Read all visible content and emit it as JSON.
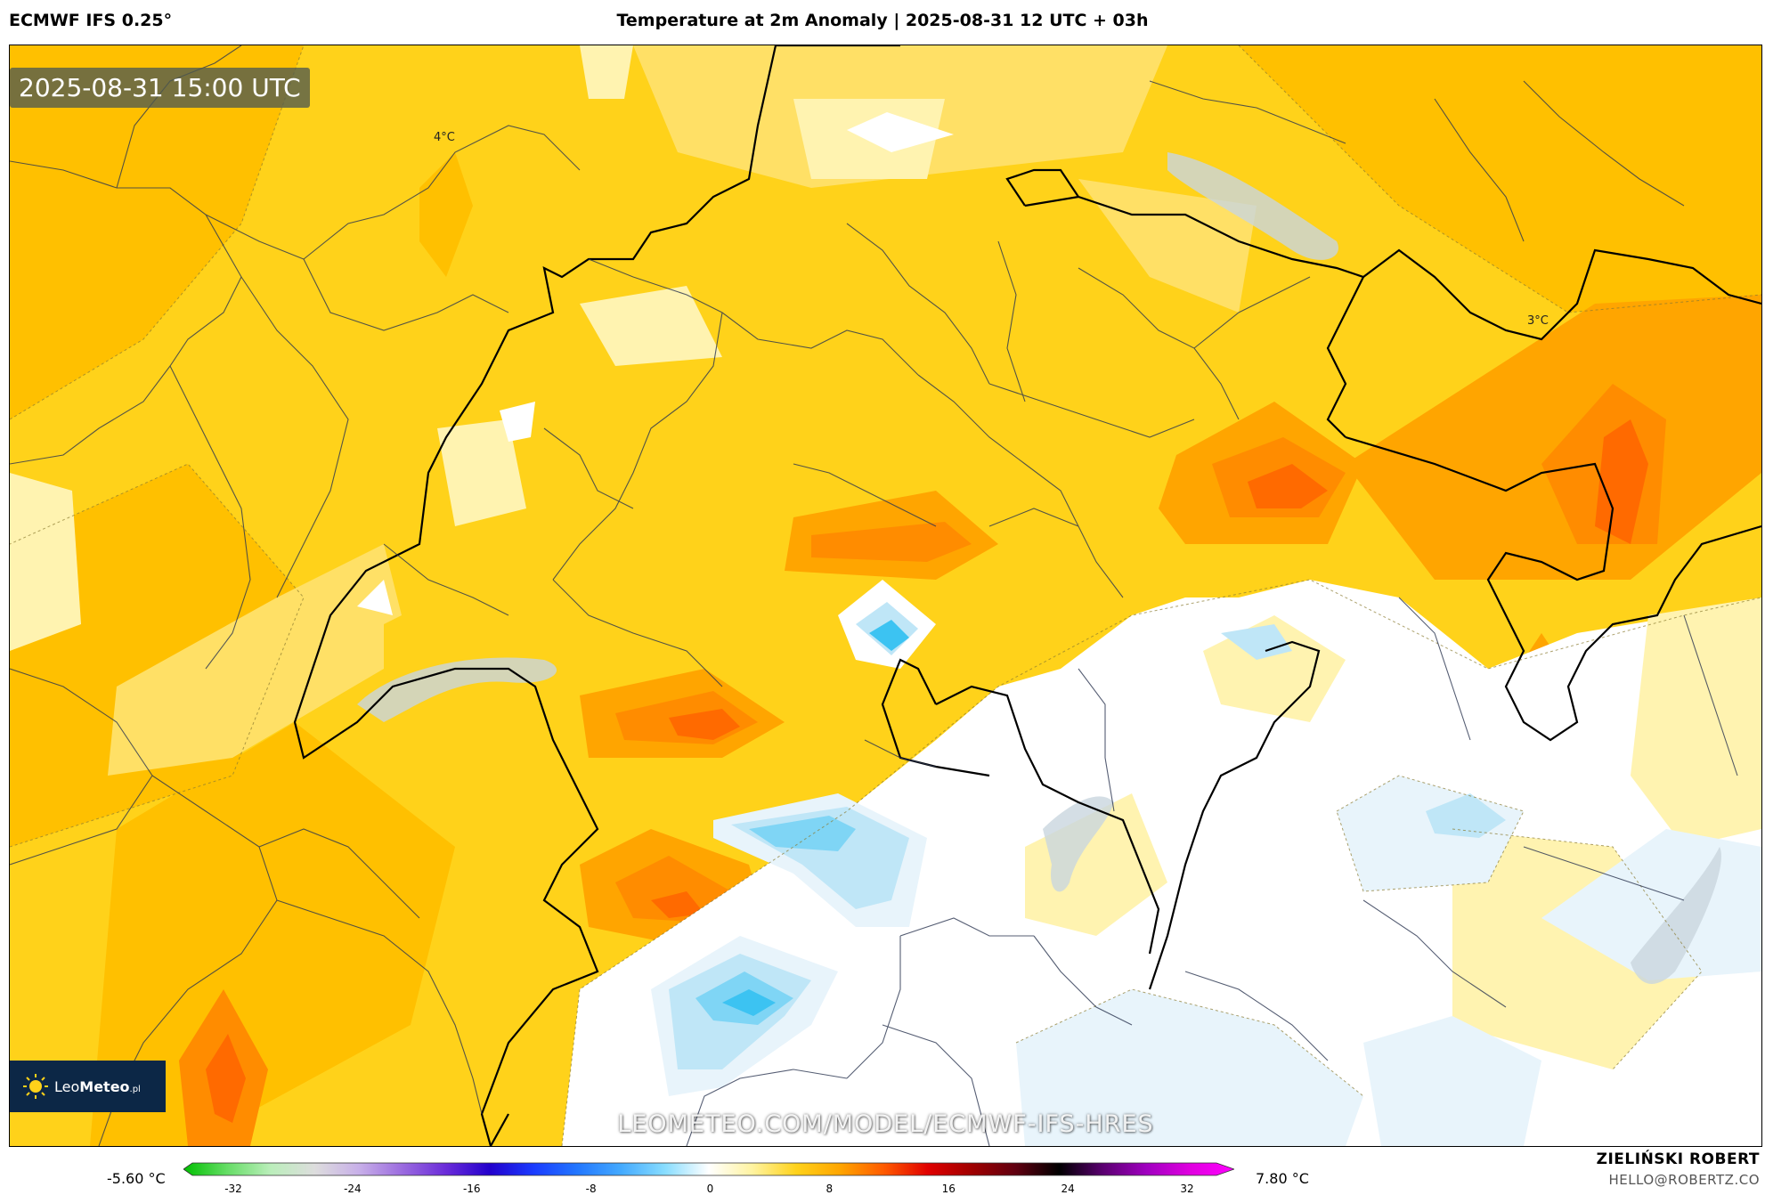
{
  "header": {
    "model": "ECMWF IFS 0.25°",
    "title": "Temperature at 2m Anomaly | 2025-08-31 12 UTC + 03h"
  },
  "map": {
    "timestamp": "2025-08-31 15:00 UTC",
    "contour_labels": [
      "4°C",
      "3°C"
    ],
    "watermark": "LEOMETEO.COM/MODEL/ECMWF-IFS-HRES",
    "logo_text_light": "Leo",
    "logo_text_bold": "Meteo",
    "logo_suffix": ".pl",
    "colors": {
      "level_0": "#ffffff",
      "level_1": "#fff3b0",
      "level_2": "#ffe066",
      "level_3": "#ffd21a",
      "level_4": "#ffc000",
      "level_5": "#ffa500",
      "level_6": "#ff8c00",
      "level_7": "#ff6a00",
      "cold_1": "#e8f4fb",
      "cold_2": "#bfe6f7",
      "cold_3": "#7fd5f5",
      "cold_4": "#3cc3f2",
      "lake": "#c9d6de"
    }
  },
  "colorbar": {
    "min_label": "-5.60 °C",
    "max_label": "7.80 °C",
    "ticks": [
      "-32",
      "-24",
      "-16",
      "-8",
      "0",
      "8",
      "16",
      "24",
      "32"
    ],
    "stops": [
      "#00c000",
      "#66dd66",
      "#bbeebb",
      "#dddddd",
      "#c8b0e8",
      "#9b6bdf",
      "#6a2bd9",
      "#2200cc",
      "#1a3bff",
      "#2277ff",
      "#44aaff",
      "#88ddff",
      "#ffffff",
      "#fff3a0",
      "#ffd21a",
      "#ffa500",
      "#ff5a00",
      "#e00000",
      "#a00000",
      "#600010",
      "#000000",
      "#5a0070",
      "#a000c0",
      "#e000e0",
      "#ff00ff"
    ]
  },
  "credits": {
    "author": "ZIELIŃSKI ROBERT",
    "email": "HELLO@ROBERTZ.CO"
  }
}
